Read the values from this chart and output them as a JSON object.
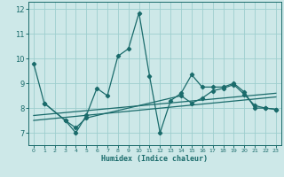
{
  "xlabel": "Humidex (Indice chaleur)",
  "bg_color": "#cde8e8",
  "grid_color": "#9ecece",
  "line_color": "#1a6b6b",
  "xlim": [
    -0.5,
    23.5
  ],
  "ylim": [
    6.5,
    12.3
  ],
  "yticks": [
    7,
    8,
    9,
    10,
    11,
    12
  ],
  "xticks": [
    0,
    1,
    2,
    3,
    4,
    5,
    6,
    7,
    8,
    9,
    10,
    11,
    12,
    13,
    14,
    15,
    16,
    17,
    18,
    19,
    20,
    21,
    22,
    23
  ],
  "series1_x": [
    0,
    1,
    3,
    4,
    5,
    6,
    7,
    8,
    9,
    10,
    11,
    12,
    13,
    14,
    15,
    16,
    17,
    18,
    19,
    20,
    21,
    22,
    23
  ],
  "series1_y": [
    9.8,
    8.2,
    7.5,
    7.0,
    7.7,
    8.8,
    8.5,
    10.1,
    10.4,
    11.85,
    9.3,
    7.0,
    8.3,
    8.6,
    9.35,
    8.85,
    8.85,
    8.85,
    9.0,
    8.65,
    8.0,
    8.0,
    7.95
  ],
  "series2_x": [
    1,
    3,
    4,
    5,
    14,
    15,
    16,
    17,
    18,
    19,
    20,
    21,
    22,
    23
  ],
  "series2_y": [
    8.2,
    7.5,
    7.2,
    7.6,
    8.5,
    8.2,
    8.4,
    8.7,
    8.8,
    8.95,
    8.55,
    8.1,
    8.0,
    7.95
  ],
  "trend1_x": [
    0,
    23
  ],
  "trend1_y": [
    7.5,
    8.45
  ],
  "trend2_x": [
    0,
    23
  ],
  "trend2_y": [
    7.7,
    8.6
  ]
}
